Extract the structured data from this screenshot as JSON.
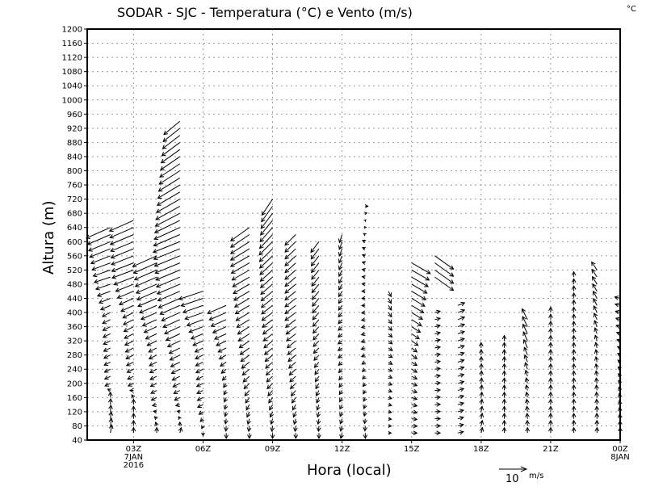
{
  "chart_data": {
    "type": "vector",
    "title": "SODAR - SJC - Temperatura (°C) e Vento (m/s)",
    "corner_label": "°C",
    "xlabel": "Hora (local)",
    "ylabel": "Altura (m)",
    "xlim_hours": [
      1,
      24
    ],
    "ylim": [
      40,
      1200
    ],
    "y_ticks": [
      40,
      80,
      120,
      160,
      200,
      240,
      280,
      320,
      360,
      400,
      440,
      480,
      520,
      560,
      600,
      640,
      680,
      720,
      760,
      800,
      840,
      880,
      920,
      960,
      1000,
      1040,
      1080,
      1120,
      1160,
      1200
    ],
    "x_ticks": [
      {
        "h": 3,
        "lines": [
          "03Z",
          "7JAN",
          "2016"
        ]
      },
      {
        "h": 6,
        "lines": [
          "06Z"
        ]
      },
      {
        "h": 9,
        "lines": [
          "09Z"
        ]
      },
      {
        "h": 12,
        "lines": [
          "12Z"
        ]
      },
      {
        "h": 15,
        "lines": [
          "15Z"
        ]
      },
      {
        "h": 18,
        "lines": [
          "18Z"
        ]
      },
      {
        "h": 21,
        "lines": [
          "21Z"
        ]
      },
      {
        "h": 24,
        "lines": [
          "00Z",
          "8JAN"
        ]
      }
    ],
    "grid": true,
    "level_step_m": 20,
    "vector_units": "m/s",
    "legend": {
      "value": "10",
      "units": "m/s",
      "placement": "bottom-right"
    },
    "columns_note": "segments: keypoints [altitude_m, u_ms, v_ms], interpolated every 20 m",
    "columns": [
      {
        "h": 2,
        "segments": [
          [
            [
              60,
              0.5,
              3
            ],
            [
              160,
              0,
              2
            ],
            [
              200,
              -2,
              -1
            ],
            [
              400,
              -3,
              -1.5
            ],
            [
              500,
              -6,
              -2
            ],
            [
              640,
              -9,
              -4
            ]
          ]
        ]
      },
      {
        "h": 3,
        "segments": [
          [
            [
              60,
              0,
              2
            ],
            [
              140,
              0,
              2
            ],
            [
              200,
              -2,
              -1
            ],
            [
              400,
              -4,
              -2
            ],
            [
              520,
              -8,
              -3
            ],
            [
              660,
              -9,
              -4
            ]
          ]
        ]
      },
      {
        "h": 4,
        "segments": [
          [
            [
              60,
              0,
              2
            ],
            [
              160,
              -2,
              -1
            ],
            [
              300,
              -3,
              -1.5
            ],
            [
              440,
              -7,
              -3
            ],
            [
              560,
              -9,
              -4
            ]
          ]
        ]
      },
      {
        "h": 5,
        "segments": [
          [
            [
              60,
              0.5,
              2
            ],
            [
              160,
              -2,
              -1
            ],
            [
              300,
              -4,
              -2
            ],
            [
              440,
              -8,
              -3.5
            ],
            [
              600,
              -10,
              -4
            ],
            [
              700,
              -9,
              -5
            ],
            [
              940,
              -6,
              -5
            ]
          ]
        ]
      },
      {
        "h": 6,
        "segments": [
          [
            [
              60,
              0,
              -1
            ],
            [
              140,
              -2,
              -1
            ],
            [
              300,
              -3,
              -1.5
            ],
            [
              460,
              -9,
              -3
            ]
          ]
        ]
      },
      {
        "h": 7,
        "segments": [
          [
            [
              60,
              0,
              -2
            ],
            [
              200,
              -1,
              -1.5
            ],
            [
              300,
              -3,
              -1.5
            ],
            [
              420,
              -7,
              -3
            ]
          ]
        ]
      },
      {
        "h": 8,
        "segments": [
          [
            [
              60,
              0,
              -2
            ],
            [
              200,
              -2,
              -2
            ],
            [
              400,
              -5,
              -3
            ],
            [
              560,
              -7,
              -4
            ],
            [
              640,
              -7,
              -5
            ]
          ]
        ]
      },
      {
        "h": 9,
        "segments": [
          [
            [
              60,
              0,
              -2
            ],
            [
              200,
              -2,
              -2
            ],
            [
              400,
              -4,
              -3
            ],
            [
              600,
              -5,
              -5
            ],
            [
              720,
              -4,
              -6
            ]
          ]
        ]
      },
      {
        "h": 10,
        "segments": [
          [
            [
              60,
              0,
              -2
            ],
            [
              200,
              -2,
              -2
            ],
            [
              400,
              -4,
              -3
            ],
            [
              620,
              -4,
              -4
            ]
          ]
        ]
      },
      {
        "h": 11,
        "segments": [
          [
            [
              60,
              0,
              -2
            ],
            [
              300,
              -2,
              -2
            ],
            [
              600,
              -3,
              -4
            ]
          ]
        ]
      },
      {
        "h": 12,
        "segments": [
          [
            [
              60,
              -0.5,
              -2
            ],
            [
              300,
              -1.5,
              -1
            ],
            [
              620,
              -1,
              -3
            ]
          ]
        ]
      },
      {
        "h": 13,
        "segments": [
          [
            [
              60,
              0,
              -2
            ],
            [
              300,
              -1.5,
              -0.5
            ],
            [
              600,
              -1,
              0.5
            ],
            [
              700,
              1,
              0
            ]
          ]
        ]
      },
      {
        "h": 14,
        "segments": [
          [
            [
              60,
              1,
              0
            ],
            [
              300,
              1.5,
              -1
            ],
            [
              460,
              1,
              -2
            ]
          ]
        ]
      },
      {
        "h": 15,
        "segments": [
          [
            [
              60,
              2,
              0
            ],
            [
              300,
              2,
              -1.5
            ],
            [
              540,
              7,
              -4
            ]
          ]
        ]
      },
      {
        "h": 16,
        "segments": [
          [
            [
              60,
              2,
              0
            ],
            [
              400,
              2,
              0.5
            ]
          ],
          [
            [
              500,
              7,
              -5
            ],
            [
              560,
              7,
              -5
            ]
          ]
        ]
      },
      {
        "h": 17,
        "segments": [
          [
            [
              60,
              2,
              0.5
            ],
            [
              420,
              2.5,
              1
            ]
          ]
        ]
      },
      {
        "h": 18,
        "segments": [
          [
            [
              60,
              0.5,
              2
            ],
            [
              300,
              0,
              2
            ]
          ]
        ]
      },
      {
        "h": 19,
        "segments": [
          [
            [
              60,
              0,
              2
            ],
            [
              320,
              0,
              2
            ]
          ]
        ]
      },
      {
        "h": 20,
        "segments": [
          [
            [
              60,
              0,
              2
            ],
            [
              200,
              -0.5,
              2
            ],
            [
              380,
              -2,
              4
            ]
          ]
        ]
      },
      {
        "h": 21,
        "segments": [
          [
            [
              60,
              0,
              2
            ],
            [
              400,
              0,
              2
            ]
          ]
        ]
      },
      {
        "h": 22,
        "segments": [
          [
            [
              60,
              0,
              2
            ],
            [
              500,
              0,
              2
            ]
          ]
        ]
      },
      {
        "h": 23,
        "segments": [
          [
            [
              60,
              0,
              2
            ],
            [
              300,
              -0.5,
              2
            ],
            [
              520,
              -2,
              3
            ]
          ]
        ]
      },
      {
        "h": 24,
        "segments": [
          [
            [
              60,
              0,
              2
            ],
            [
              300,
              -1,
              0.5
            ],
            [
              440,
              -2,
              0.5
            ]
          ]
        ]
      }
    ]
  }
}
